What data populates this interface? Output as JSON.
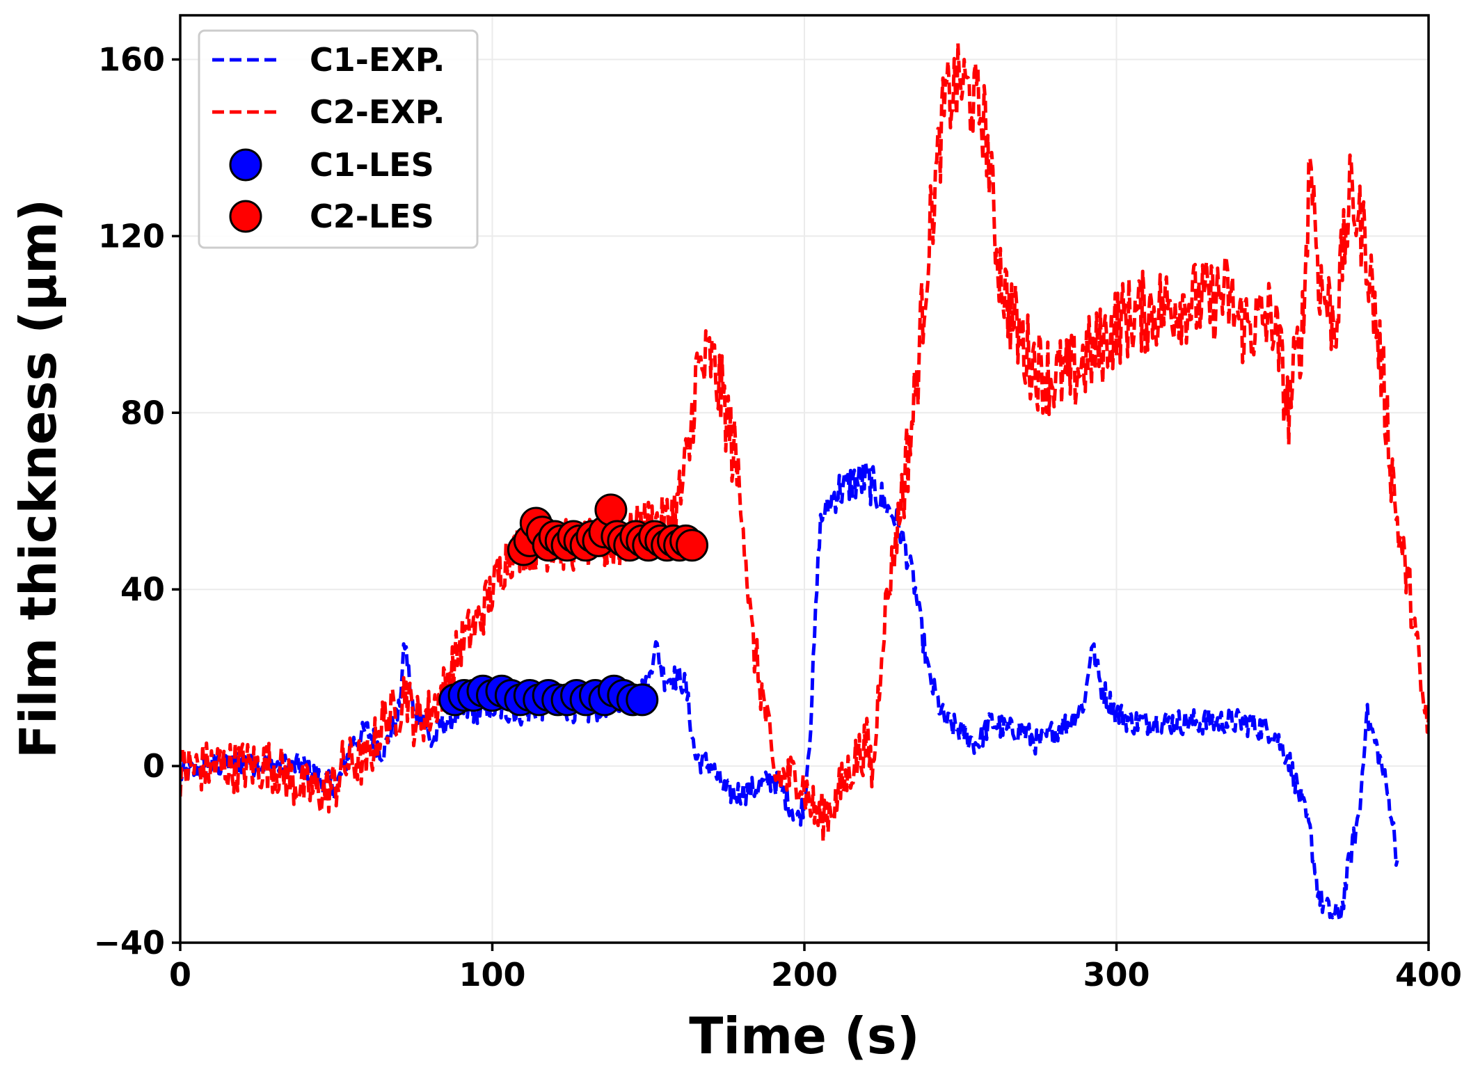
{
  "chart_data": {
    "type": "line",
    "title": "",
    "xlabel": "Time (s)",
    "ylabel": "Film thickness (μm)",
    "xlim": [
      0,
      400
    ],
    "ylim": [
      -40,
      170
    ],
    "xticks": [
      0,
      100,
      200,
      300,
      400
    ],
    "yticks": [
      -40,
      0,
      40,
      80,
      120,
      160
    ],
    "xtick_labels": [
      "0",
      "100",
      "200",
      "300",
      "400"
    ],
    "ytick_labels": [
      "−40",
      "0",
      "40",
      "80",
      "120",
      "160"
    ],
    "grid": true,
    "legend_position": "top-left",
    "colors": {
      "c1": "#0000ff",
      "c2": "#ff0000",
      "marker_edge": "#000000",
      "grid": "#ebebeb"
    },
    "legend": [
      "C1-EXP.",
      "C2-EXP.",
      "C1-LES",
      "C2-LES"
    ],
    "series": [
      {
        "name": "C1-EXP.",
        "style": "dashed-line",
        "color": "#0000ff",
        "noise": 3,
        "x": [
          0,
          10,
          20,
          30,
          40,
          45,
          50,
          55,
          60,
          65,
          70,
          72,
          75,
          78,
          80,
          85,
          90,
          100,
          110,
          120,
          130,
          140,
          150,
          152,
          155,
          160,
          162,
          165,
          170,
          175,
          180,
          185,
          190,
          195,
          198,
          200,
          202,
          205,
          210,
          215,
          220,
          225,
          230,
          235,
          240,
          245,
          250,
          255,
          260,
          265,
          270,
          275,
          280,
          285,
          290,
          292,
          295,
          300,
          305,
          310,
          320,
          330,
          340,
          350,
          355,
          360,
          362,
          365,
          368,
          370,
          372,
          375,
          378,
          380,
          383,
          385,
          388,
          390
        ],
        "y": [
          -2,
          0,
          1,
          0,
          0,
          -3,
          -5,
          5,
          8,
          3,
          12,
          28,
          10,
          12,
          5,
          10,
          12,
          13,
          12,
          14,
          12,
          15,
          18,
          28,
          20,
          20,
          18,
          2,
          0,
          -6,
          -6,
          -5,
          -3,
          -8,
          -12,
          -8,
          10,
          55,
          62,
          64,
          65,
          60,
          55,
          42,
          20,
          10,
          8,
          5,
          10,
          8,
          8,
          5,
          8,
          10,
          15,
          28,
          18,
          12,
          10,
          10,
          10,
          10,
          10,
          8,
          2,
          -10,
          -15,
          -30,
          -33,
          -34,
          -33,
          -20,
          -10,
          12,
          5,
          0,
          -10,
          -22
        ]
      },
      {
        "name": "C2-EXP.",
        "style": "dashed-line",
        "color": "#ff0000",
        "noise": 6,
        "x": [
          0,
          10,
          20,
          30,
          35,
          40,
          45,
          50,
          52,
          55,
          60,
          65,
          68,
          70,
          72,
          75,
          80,
          85,
          90,
          95,
          100,
          105,
          110,
          120,
          130,
          140,
          150,
          155,
          160,
          163,
          165,
          170,
          175,
          180,
          183,
          185,
          188,
          190,
          195,
          198,
          200,
          203,
          205,
          210,
          215,
          220,
          222,
          225,
          230,
          235,
          240,
          245,
          250,
          255,
          258,
          260,
          262,
          265,
          270,
          275,
          280,
          285,
          290,
          295,
          300,
          305,
          310,
          320,
          330,
          335,
          340,
          345,
          350,
          353,
          355,
          360,
          362,
          365,
          370,
          375,
          380,
          385,
          390,
          395,
          398,
          400
        ],
        "y": [
          -1,
          0,
          0,
          0,
          -3,
          -5,
          -6,
          -4,
          0,
          1,
          1,
          10,
          12,
          12,
          18,
          10,
          12,
          18,
          28,
          32,
          40,
          48,
          50,
          50,
          50,
          50,
          55,
          55,
          60,
          70,
          88,
          92,
          80,
          60,
          30,
          22,
          10,
          -2,
          -3,
          -2,
          -5,
          -10,
          -12,
          -8,
          0,
          5,
          -2,
          30,
          55,
          80,
          120,
          150,
          155,
          150,
          145,
          130,
          115,
          105,
          95,
          90,
          88,
          88,
          92,
          95,
          100,
          102,
          103,
          105,
          105,
          107,
          100,
          100,
          102,
          90,
          80,
          102,
          140,
          110,
          100,
          130,
          118,
          90,
          55,
          35,
          15,
          8
        ]
      },
      {
        "name": "C1-LES",
        "style": "markers",
        "color": "#0000ff",
        "x": [
          88,
          91,
          94,
          97,
          100,
          103,
          106,
          109,
          112,
          115,
          118,
          121,
          124,
          127,
          130,
          133,
          136,
          139,
          142,
          145,
          148
        ],
        "y": [
          15,
          16,
          16,
          17,
          16,
          17,
          16,
          15,
          16,
          15,
          16,
          15,
          15,
          16,
          15,
          16,
          15,
          17,
          16,
          15,
          15
        ]
      },
      {
        "name": "C2-LES",
        "style": "markers",
        "color": "#ff0000",
        "x": [
          110,
          112,
          114,
          116,
          118,
          120,
          122,
          124,
          126,
          128,
          130,
          132,
          134,
          136,
          138,
          140,
          142,
          144,
          146,
          148,
          150,
          152,
          154,
          156,
          158,
          160,
          162,
          164
        ],
        "y": [
          49,
          51,
          55,
          53,
          50,
          52,
          51,
          50,
          52,
          51,
          50,
          52,
          51,
          53,
          58,
          52,
          51,
          50,
          52,
          51,
          50,
          52,
          51,
          50,
          51,
          50,
          51,
          50
        ]
      }
    ]
  }
}
